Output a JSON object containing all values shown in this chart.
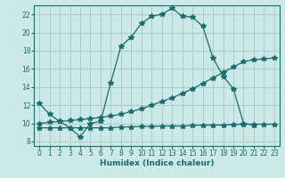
{
  "xlabel": "Humidex (Indice chaleur)",
  "bg_color": "#cce8e8",
  "grid_color": "#aacccc",
  "line_color": "#1a6b6b",
  "xlim": [
    -0.5,
    23.5
  ],
  "ylim": [
    7.5,
    23.0
  ],
  "xticks": [
    0,
    1,
    2,
    3,
    4,
    5,
    6,
    7,
    8,
    9,
    10,
    11,
    12,
    13,
    14,
    15,
    16,
    17,
    18,
    19,
    20,
    21,
    22,
    23
  ],
  "yticks": [
    8,
    10,
    12,
    14,
    16,
    18,
    20,
    22
  ],
  "line1_x": [
    0,
    1,
    2,
    3,
    4,
    5,
    6,
    7,
    8,
    9,
    10,
    11,
    12,
    13,
    14,
    15,
    16,
    17,
    18,
    19,
    20,
    21
  ],
  "line1_y": [
    12.2,
    11.0,
    10.2,
    9.5,
    8.5,
    10.0,
    10.2,
    14.5,
    18.5,
    19.5,
    21.0,
    21.8,
    22.0,
    22.7,
    21.8,
    21.7,
    20.7,
    17.2,
    15.2,
    13.8,
    10.0,
    9.8
  ],
  "line2_x": [
    0,
    1,
    2,
    3,
    4,
    5,
    6,
    7,
    8,
    9,
    10,
    11,
    12,
    13,
    14,
    15,
    16,
    17,
    18,
    19,
    20,
    21,
    22,
    23
  ],
  "line2_y": [
    10.0,
    10.1,
    10.2,
    10.3,
    10.4,
    10.5,
    10.65,
    10.8,
    11.0,
    11.3,
    11.6,
    12.0,
    12.4,
    12.8,
    13.3,
    13.8,
    14.4,
    15.0,
    15.6,
    16.2,
    16.8,
    17.0,
    17.1,
    17.2
  ],
  "line3_x": [
    0,
    1,
    2,
    3,
    4,
    5,
    6,
    7,
    8,
    9,
    10,
    11,
    12,
    13,
    14,
    15,
    16,
    17,
    18,
    19,
    20,
    21,
    22,
    23
  ],
  "line3_y": [
    9.5,
    9.5,
    9.5,
    9.5,
    9.5,
    9.5,
    9.5,
    9.5,
    9.6,
    9.6,
    9.65,
    9.65,
    9.7,
    9.7,
    9.7,
    9.75,
    9.8,
    9.8,
    9.8,
    9.85,
    9.9,
    9.9,
    9.9,
    9.9
  ]
}
